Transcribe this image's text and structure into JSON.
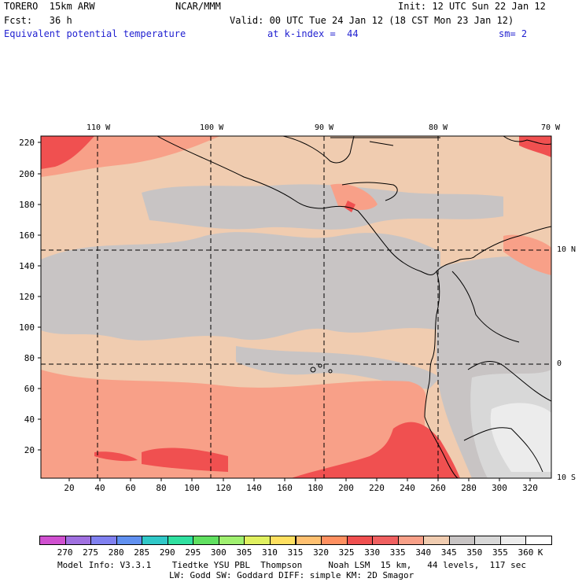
{
  "header": {
    "model": "TORERO  15km ARW",
    "org": "NCAR/MMM",
    "init": "Init: 12 UTC Sun 22 Jan 12",
    "fcst": "Fcst:   36 h",
    "valid": "Valid: 00 UTC Tue 24 Jan 12 (18 CST Mon 23 Jan 12)",
    "field": "Equivalent potential temperature",
    "level": "at k-index =  44",
    "smooth": "sm= 2"
  },
  "map": {
    "lon_labels": [
      "110 W",
      "100 W",
      "90 W",
      "80 W",
      "70 W"
    ],
    "lat_labels": [
      "10 N",
      "0",
      "10 S"
    ],
    "y_ticks": [
      "220",
      "200",
      "180",
      "160",
      "140",
      "120",
      "100",
      "80",
      "60",
      "40",
      "20"
    ],
    "x_ticks": [
      "20",
      "40",
      "60",
      "80",
      "100",
      "120",
      "140",
      "160",
      "180",
      "200",
      "220",
      "240",
      "260",
      "280",
      "300",
      "320"
    ]
  },
  "colorbar": {
    "labels": [
      "270",
      "275",
      "280",
      "285",
      "290",
      "295",
      "300",
      "305",
      "310",
      "315",
      "320",
      "325",
      "330",
      "335",
      "340",
      "345",
      "350",
      "355",
      "360",
      "K"
    ],
    "colors": [
      "#d050d0",
      "#a070e0",
      "#8080f0",
      "#6090f0",
      "#30c8c8",
      "#30e0a0",
      "#60e060",
      "#a0f070",
      "#e0f060",
      "#ffe060",
      "#ffc070",
      "#ff9060",
      "#f05050",
      "#f06060",
      "#f8a088",
      "#f0ccb0",
      "#c8c4c4",
      "#d8d8d8",
      "#ececec",
      "#ffffff"
    ]
  },
  "footer": {
    "line1": "Model Info: V3.3.1    Tiedtke YSU PBL  Thompson     Noah LSM  15 km,   44 levels,  117 sec",
    "line2": "LW: Godd SW: Goddard DIFF: simple KM: 2D Smagor"
  }
}
